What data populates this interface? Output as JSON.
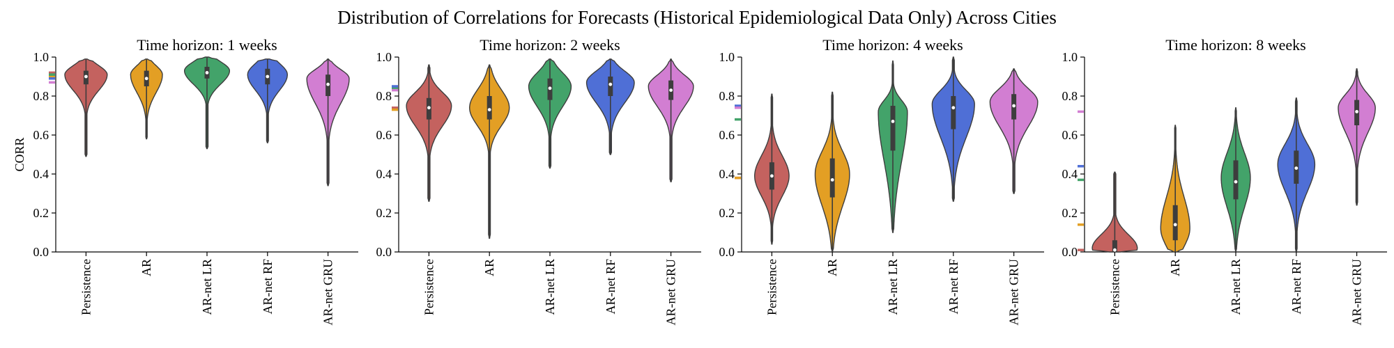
{
  "figure": {
    "title": "Distribution of Correlations for Forecasts (Historical Epidemiological Data Only) Across Cities"
  },
  "chart_data": [
    {
      "type": "violin",
      "title": "Time horizon: 1 weeks",
      "ylabel": "CORR",
      "ylim": [
        0.0,
        1.0
      ],
      "yticks": [
        "0.0",
        "0.2",
        "0.4",
        "0.6",
        "0.8",
        "1.0"
      ],
      "categories": [
        "Persistence",
        "AR",
        "AR-net LR",
        "AR-net RF",
        "AR-net GRU"
      ],
      "colors": [
        "#c4625f",
        "#e39f24",
        "#43a36a",
        "#4f6fd6",
        "#d27ed2"
      ],
      "violins": [
        {
          "min": 0.49,
          "q1": 0.86,
          "median": 0.9,
          "q3": 0.93,
          "max": 0.99,
          "mode": 0.91,
          "width": 0.8
        },
        {
          "min": 0.58,
          "q1": 0.85,
          "median": 0.89,
          "q3": 0.93,
          "max": 0.99,
          "mode": 0.91,
          "width": 0.6
        },
        {
          "min": 0.53,
          "q1": 0.89,
          "median": 0.92,
          "q3": 0.95,
          "max": 1.0,
          "mode": 0.93,
          "width": 0.85
        },
        {
          "min": 0.56,
          "q1": 0.86,
          "median": 0.9,
          "q3": 0.94,
          "max": 0.99,
          "mode": 0.91,
          "width": 0.75
        },
        {
          "min": 0.34,
          "q1": 0.8,
          "median": 0.86,
          "q3": 0.91,
          "max": 0.99,
          "mode": 0.89,
          "width": 0.8
        }
      ],
      "axis_markers": [
        0.92,
        0.9,
        0.91,
        0.89,
        0.87
      ]
    },
    {
      "type": "violin",
      "title": "Time horizon: 2 weeks",
      "ylabel": "",
      "ylim": [
        0.0,
        1.0
      ],
      "yticks": [
        "0.0",
        "0.2",
        "0.4",
        "0.6",
        "0.8",
        "1.0"
      ],
      "categories": [
        "Persistence",
        "AR",
        "AR-net LR",
        "AR-net RF",
        "AR-net GRU"
      ],
      "colors": [
        "#c4625f",
        "#e39f24",
        "#43a36a",
        "#4f6fd6",
        "#d27ed2"
      ],
      "violins": [
        {
          "min": 0.26,
          "q1": 0.68,
          "median": 0.74,
          "q3": 0.79,
          "max": 0.96,
          "mode": 0.75,
          "width": 0.85
        },
        {
          "min": 0.07,
          "q1": 0.68,
          "median": 0.73,
          "q3": 0.8,
          "max": 0.96,
          "mode": 0.74,
          "width": 0.75
        },
        {
          "min": 0.43,
          "q1": 0.78,
          "median": 0.84,
          "q3": 0.89,
          "max": 0.99,
          "mode": 0.85,
          "width": 0.8
        },
        {
          "min": 0.5,
          "q1": 0.8,
          "median": 0.86,
          "q3": 0.9,
          "max": 0.99,
          "mode": 0.87,
          "width": 0.9
        },
        {
          "min": 0.36,
          "q1": 0.78,
          "median": 0.83,
          "q3": 0.88,
          "max": 0.99,
          "mode": 0.85,
          "width": 0.85
        }
      ],
      "axis_markers": [
        0.74,
        0.73,
        0.84,
        0.85,
        0.83
      ]
    },
    {
      "type": "violin",
      "title": "Time horizon: 4 weeks",
      "ylabel": "",
      "ylim": [
        0.0,
        1.0
      ],
      "yticks": [
        "0.0",
        "0.2",
        "0.4",
        "0.6",
        "0.8",
        "1.0"
      ],
      "categories": [
        "Persistence",
        "AR",
        "AR-net LR",
        "AR-net RF",
        "AR-net GRU"
      ],
      "colors": [
        "#c4625f",
        "#e39f24",
        "#43a36a",
        "#4f6fd6",
        "#d27ed2"
      ],
      "violins": [
        {
          "min": 0.04,
          "q1": 0.32,
          "median": 0.39,
          "q3": 0.46,
          "max": 0.81,
          "mode": 0.39,
          "width": 0.65
        },
        {
          "min": 0.0,
          "q1": 0.28,
          "median": 0.37,
          "q3": 0.48,
          "max": 0.82,
          "mode": 0.4,
          "width": 0.65
        },
        {
          "min": 0.1,
          "q1": 0.52,
          "median": 0.67,
          "q3": 0.75,
          "max": 0.98,
          "mode": 0.72,
          "width": 0.55
        },
        {
          "min": 0.26,
          "q1": 0.63,
          "median": 0.74,
          "q3": 0.8,
          "max": 1.0,
          "mode": 0.76,
          "width": 0.8
        },
        {
          "min": 0.3,
          "q1": 0.68,
          "median": 0.75,
          "q3": 0.81,
          "max": 0.94,
          "mode": 0.77,
          "width": 0.9
        }
      ],
      "axis_markers": [
        0.38,
        0.38,
        0.68,
        0.75,
        0.74
      ]
    },
    {
      "type": "violin",
      "title": "Time horizon: 8 weeks",
      "ylabel": "",
      "ylim": [
        0.0,
        1.0
      ],
      "yticks": [
        "0.0",
        "0.2",
        "0.4",
        "0.6",
        "0.8",
        "1.0"
      ],
      "categories": [
        "Persistence",
        "AR",
        "AR-net LR",
        "AR-net RF",
        "AR-net GRU"
      ],
      "colors": [
        "#c4625f",
        "#e39f24",
        "#43a36a",
        "#4f6fd6",
        "#d27ed2"
      ],
      "violins": [
        {
          "min": 0.0,
          "q1": 0.0,
          "median": 0.01,
          "q3": 0.06,
          "max": 0.41,
          "mode": 0.02,
          "width": 0.85
        },
        {
          "min": 0.0,
          "q1": 0.06,
          "median": 0.14,
          "q3": 0.24,
          "max": 0.65,
          "mode": 0.12,
          "width": 0.55
        },
        {
          "min": 0.0,
          "q1": 0.27,
          "median": 0.36,
          "q3": 0.47,
          "max": 0.74,
          "mode": 0.38,
          "width": 0.55
        },
        {
          "min": 0.0,
          "q1": 0.35,
          "median": 0.43,
          "q3": 0.52,
          "max": 0.79,
          "mode": 0.45,
          "width": 0.7
        },
        {
          "min": 0.24,
          "q1": 0.65,
          "median": 0.72,
          "q3": 0.78,
          "max": 0.94,
          "mode": 0.74,
          "width": 0.7
        }
      ],
      "axis_markers": [
        0.01,
        0.14,
        0.37,
        0.44,
        0.72
      ]
    }
  ]
}
